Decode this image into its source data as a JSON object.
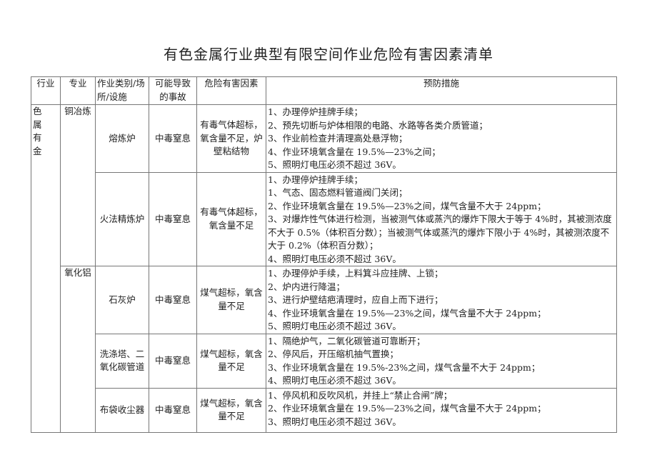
{
  "title": "有色金属行业典型有限空间作业危险有害因素清单",
  "headers": [
    "行业",
    "专业",
    "作业类别/场所/设施",
    "可能导致的事故",
    "危险有害因素",
    "预防措施"
  ],
  "industry": "色属有金",
  "rows": [
    {
      "specialty": "铜冶炼",
      "site": "熔炼炉",
      "accident": "中毒窒息",
      "hazard": "有毒气体超标，氧含量不足，炉壁粘结物",
      "measures": [
        "1、办理停炉挂牌手续；",
        "2、预先切断与炉体相限的电路、水路等各类介质管道；",
        "3、作业前检查并清理高处悬浮物；",
        "4、作业环境氧含量在 19.5%—23%之间；",
        "5、照明灯电压必须不超过 36V。"
      ]
    },
    {
      "specialty": "",
      "site": "火法精炼炉",
      "accident": "中毒窒息",
      "hazard": "有毒气体超标，氧含量不足",
      "measures": [
        "1、办理停炉挂牌手续；",
        "1、气态、固态燃料管道阀门关闭；",
        "2、作业环境氧含量在 19.5%—23%之间，煤气含量不大于 24ppm；",
        "3、对爆炸性气体进行检测，当被测气体或蒸汽的爆炸下限大于等于 4%时，其被测浓度不大于 0.5%（体积百分数）；当被测气体或蒸汽的爆炸下限小于 4%时，其被测浓度不大于 0.2%（体积百分数）；",
        "4、照明灯电压必须不超过 36V。"
      ]
    },
    {
      "specialty": "氧化铝",
      "site": "石灰炉",
      "accident": "中毒窒息",
      "hazard": "煤气超标，氧含量不足",
      "measures": [
        "1、办理停炉手续，上料箕斗应挂牌、上锁；",
        "2、炉内进行降温；",
        "3、进行炉壁结疤清理时，应自上而下进行；",
        "4、作业环境氧含量在 19.5%—23%之间，煤气含量不大于 24ppm；",
        "5、照明灯电压必须不超过 36V。"
      ]
    },
    {
      "specialty": "",
      "site": "洗涤塔、二氧化碳管道",
      "accident": "中毒窒息",
      "hazard": "煤气超标，氧含量不足",
      "measures": [
        "1、隔绝炉气，二氧化碳管道可靠断开；",
        "2、停风后，开压缩机抽气置换；",
        "3、作业环境氧含量在 19.5%-23%之间，煤气含量不大于 24ppm；",
        "4、照明灯电压必须不超过 36V。"
      ]
    },
    {
      "specialty": "",
      "site": "布袋收尘器",
      "accident": "中毒窒息",
      "hazard": "煤气超标，氧含量不足",
      "measures": [
        "1、停风机和反吹风机，并挂上“禁止合闸”牌；",
        "2、作业环境氧含量在 19.5%—23%之间，煤气含量不大于 24ppm；",
        "3、照明灯电压必须不超过 36V。"
      ]
    }
  ]
}
